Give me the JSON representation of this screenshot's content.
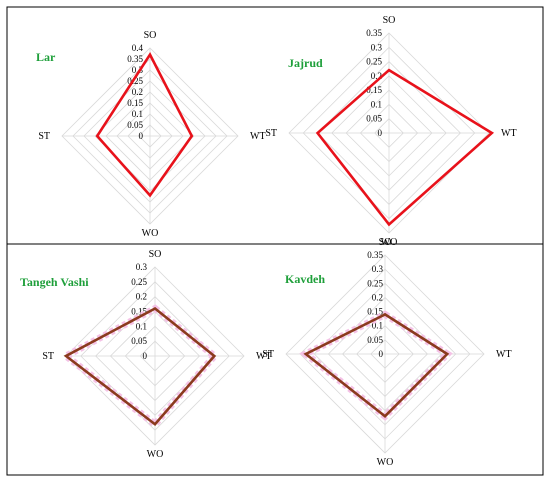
{
  "chart_data": [
    {
      "type": "radar",
      "title": "Lar",
      "axes": [
        "SO",
        "WT",
        "WO",
        "ST"
      ],
      "ticks": [
        "0",
        "0.05",
        "0.1",
        "0.15",
        "0.2",
        "0.25",
        "0.3",
        "0.35",
        "0.4"
      ],
      "rmax": 0.4,
      "grid": true,
      "series": [
        {
          "values": [
            0.37,
            0.19,
            0.27,
            0.24
          ],
          "color": "#e8121b"
        }
      ],
      "title_color": "#1e9f3a"
    },
    {
      "type": "radar",
      "title": "Jajrud",
      "axes": [
        "SO",
        "WT",
        "WO",
        "ST"
      ],
      "ticks": [
        "0",
        "0.05",
        "0.1",
        "0.15",
        "0.2",
        "0.25",
        "0.3",
        "0.35"
      ],
      "rmax": 0.35,
      "grid": true,
      "series": [
        {
          "values": [
            0.22,
            0.36,
            0.32,
            0.25
          ],
          "color": "#e8121b"
        }
      ],
      "title_color": "#1e9f3a"
    },
    {
      "type": "radar",
      "title": "Tangeh Vashi",
      "axes": [
        "SO",
        "WT",
        "WO",
        "ST"
      ],
      "ticks": [
        "0",
        "0.05",
        "0.1",
        "0.15",
        "0.2",
        "0.25",
        "0.3"
      ],
      "rmax": 0.3,
      "grid": true,
      "series": [
        {
          "values": [
            0.16,
            0.2,
            0.23,
            0.3
          ],
          "color": "#8b3a1e",
          "shadow_color": "#f4c2e6"
        }
      ],
      "title_color": "#1e9f3a"
    },
    {
      "type": "radar",
      "title": "Kavdeh",
      "axes": [
        "SO",
        "WT",
        "WO",
        "ST"
      ],
      "ticks": [
        "0",
        "0.05",
        "0.1",
        "0.15",
        "0.2",
        "0.25",
        "0.3",
        "0.35"
      ],
      "rmax": 0.35,
      "grid": true,
      "series": [
        {
          "values": [
            0.14,
            0.22,
            0.22,
            0.28
          ],
          "color": "#8b3a1e",
          "shadow_color": "#f4c2e6"
        }
      ],
      "title_color": "#1e9f3a"
    }
  ]
}
